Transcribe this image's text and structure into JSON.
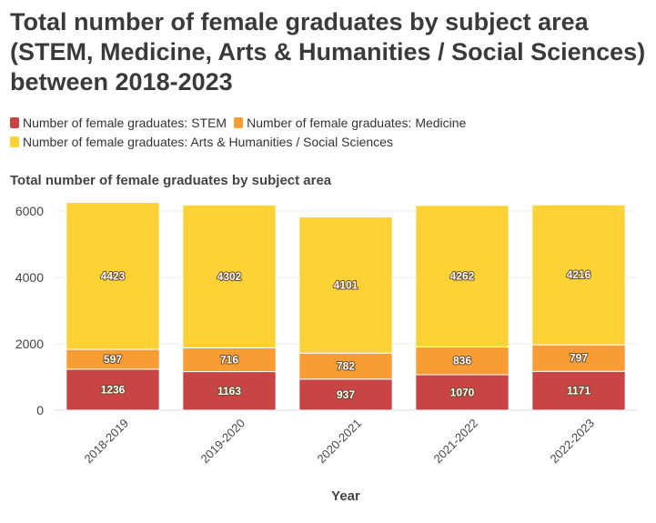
{
  "chart_data": {
    "type": "bar",
    "stacked": true,
    "title": "Total number of female graduates by subject area (STEM, Medicine, Arts & Humanities / Social Sciences) between 2018-2023",
    "subtitle": "Total number of female graduates by subject area",
    "xlabel": "Year",
    "ylabel": "",
    "ylim": [
      0,
      6300
    ],
    "yticks": [
      0,
      2000,
      4000,
      6000
    ],
    "grid": true,
    "legend_position": "top-left",
    "categories": [
      "2018-2019",
      "2019-2020",
      "2020-2021",
      "2021-2022",
      "2022-2023"
    ],
    "series": [
      {
        "name": "Number of female graduates: STEM",
        "color": "#c94444",
        "values": [
          1236,
          1163,
          937,
          1070,
          1171
        ]
      },
      {
        "name": "Number of female graduates: Medicine",
        "color": "#f79d33",
        "values": [
          597,
          716,
          782,
          836,
          797
        ]
      },
      {
        "name": "Number of female graduates: Arts & Humanities / Social Sciences",
        "color": "#fdd235",
        "values": [
          4423,
          4302,
          4101,
          4262,
          4216
        ]
      }
    ]
  }
}
